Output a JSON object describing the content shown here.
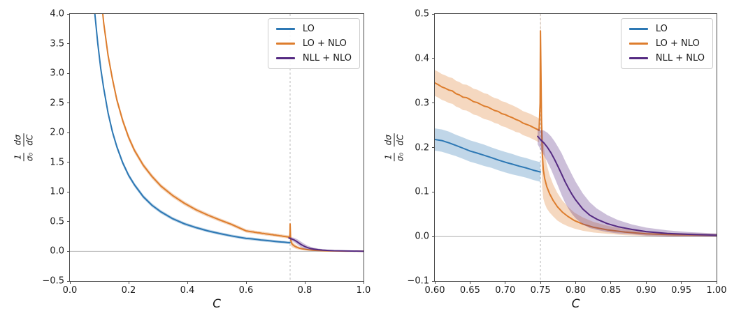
{
  "figure": {
    "background": "#ffffff"
  },
  "ylabel_parts": {
    "num1": "1",
    "den1": "σ₀",
    "num2": "dσ",
    "den2": "dC"
  },
  "legend": {
    "entries": [
      {
        "label": "LO",
        "color": "#2d78b4",
        "slug": "lo"
      },
      {
        "label": "LO + NLO",
        "color": "#dd7d2d",
        "slug": "lo-nlo"
      },
      {
        "label": "NLL + NLO",
        "color": "#552a82",
        "slug": "nll-nlo"
      }
    ]
  },
  "chart_data": {
    "type": "line",
    "title": "",
    "ylabel_text": "1/σ₀ dσ/dC",
    "grid": false,
    "legend_position": "upper right",
    "style": {
      "zero_line_color": "#b3b3b3",
      "vline_color": "#c4c4c4",
      "band_opacity": 0.3,
      "line_width": 2,
      "spine_color": "#4a4a4a"
    },
    "panels": [
      {
        "name": "left",
        "xlabel": "C",
        "xlim": [
          0.0,
          1.0
        ],
        "ylim": [
          -0.5,
          4.0
        ],
        "xtick_vals": [
          0.0,
          0.2,
          0.4,
          0.6,
          0.8,
          1.0
        ],
        "xtick_labels": [
          "0.0",
          "0.2",
          "0.4",
          "0.6",
          "0.8",
          "1.0"
        ],
        "ytick_vals": [
          4.0,
          3.5,
          3.0,
          2.5,
          2.0,
          1.5,
          1.0,
          0.5,
          0.0,
          -0.5
        ],
        "ytick_labels": [
          "4.0",
          "3.5",
          "3.0",
          "2.5",
          "2.0",
          "1.5",
          "1.0",
          "0.5",
          "0.0",
          "−0.5"
        ],
        "zero_line_y": 0.0,
        "dashed_vline_x": 0.75
      },
      {
        "name": "right",
        "xlabel": "C",
        "xlim": [
          0.6,
          1.0
        ],
        "ylim": [
          -0.1,
          0.5
        ],
        "xtick_vals": [
          0.6,
          0.65,
          0.7,
          0.75,
          0.8,
          0.85,
          0.9,
          0.95,
          1.0
        ],
        "xtick_labels": [
          "0.60",
          "0.65",
          "0.70",
          "0.75",
          "0.80",
          "0.85",
          "0.90",
          "0.95",
          "1.00"
        ],
        "ytick_vals": [
          0.5,
          0.4,
          0.3,
          0.2,
          0.1,
          0.0,
          -0.1
        ],
        "ytick_labels": [
          "0.5",
          "0.4",
          "0.3",
          "0.2",
          "0.1",
          "0.0",
          "−0.1"
        ],
        "zero_line_y": 0.0,
        "dashed_vline_x": 0.75
      }
    ],
    "series": [
      {
        "name": "LO",
        "slug": "lo",
        "color": "#2d78b4",
        "x": [
          0.075,
          0.085,
          0.095,
          0.105,
          0.115,
          0.13,
          0.145,
          0.16,
          0.18,
          0.2,
          0.22,
          0.25,
          0.28,
          0.31,
          0.35,
          0.39,
          0.43,
          0.47,
          0.51,
          0.55,
          0.6,
          0.61,
          0.62,
          0.63,
          0.64,
          0.65,
          0.66,
          0.67,
          0.68,
          0.69,
          0.7,
          0.71,
          0.72,
          0.73,
          0.74,
          0.75
        ],
        "y": [
          4.6,
          4.0,
          3.5,
          3.08,
          2.75,
          2.33,
          2.01,
          1.76,
          1.49,
          1.28,
          1.12,
          0.92,
          0.775,
          0.665,
          0.55,
          0.465,
          0.4,
          0.345,
          0.3,
          0.26,
          0.218,
          0.2155,
          0.2105,
          0.2045,
          0.1985,
          0.192,
          0.1875,
          0.1825,
          0.1775,
          0.172,
          0.167,
          0.1625,
          0.158,
          0.154,
          0.149,
          0.145
        ],
        "h": [
          0.085,
          0.075,
          0.068,
          0.062,
          0.058,
          0.052,
          0.048,
          0.044,
          0.04,
          0.038,
          0.036,
          0.033,
          0.031,
          0.03,
          0.028,
          0.027,
          0.026,
          0.026,
          0.025,
          0.025,
          0.025,
          0.025,
          0.025,
          0.024,
          0.024,
          0.024,
          0.024,
          0.024,
          0.023,
          0.023,
          0.023,
          0.023,
          0.022,
          0.022,
          0.022,
          0.022
        ]
      },
      {
        "name": "LO + NLO",
        "slug": "lo-nlo",
        "color": "#dd7d2d",
        "x": [
          0.098,
          0.105,
          0.115,
          0.13,
          0.145,
          0.16,
          0.18,
          0.2,
          0.22,
          0.25,
          0.28,
          0.31,
          0.35,
          0.39,
          0.43,
          0.47,
          0.51,
          0.55,
          0.575,
          0.6,
          0.605,
          0.61,
          0.615,
          0.62,
          0.625,
          0.63,
          0.635,
          0.64,
          0.645,
          0.65,
          0.655,
          0.66,
          0.665,
          0.67,
          0.675,
          0.68,
          0.685,
          0.69,
          0.695,
          0.7,
          0.705,
          0.71,
          0.715,
          0.72,
          0.725,
          0.73,
          0.735,
          0.74,
          0.745,
          0.748,
          0.7495,
          0.75,
          0.7508,
          0.7515,
          0.7525,
          0.754,
          0.756,
          0.759,
          0.763,
          0.768,
          0.774,
          0.781,
          0.789,
          0.798,
          0.81,
          0.825,
          0.845,
          0.87,
          0.9,
          0.94,
          1.0
        ],
        "y": [
          4.6,
          4.35,
          3.85,
          3.3,
          2.9,
          2.55,
          2.2,
          1.92,
          1.7,
          1.45,
          1.26,
          1.1,
          0.94,
          0.81,
          0.7,
          0.61,
          0.53,
          0.455,
          0.4,
          0.345,
          0.341,
          0.336,
          0.333,
          0.329,
          0.327,
          0.321,
          0.318,
          0.313,
          0.312,
          0.308,
          0.303,
          0.301,
          0.297,
          0.293,
          0.291,
          0.287,
          0.283,
          0.281,
          0.276,
          0.274,
          0.27,
          0.267,
          0.263,
          0.26,
          0.255,
          0.252,
          0.249,
          0.245,
          0.241,
          0.238,
          0.3,
          0.462,
          0.36,
          0.26,
          0.19,
          0.15,
          0.13,
          0.112,
          0.096,
          0.081,
          0.067,
          0.055,
          0.045,
          0.036,
          0.028,
          0.021,
          0.015,
          0.01,
          0.006,
          0.004,
          0.003
        ],
        "h": [
          0.08,
          0.077,
          0.071,
          0.065,
          0.06,
          0.056,
          0.051,
          0.048,
          0.045,
          0.042,
          0.04,
          0.038,
          0.036,
          0.035,
          0.033,
          0.032,
          0.031,
          0.03,
          0.03,
          0.029,
          0.029,
          0.029,
          0.029,
          0.029,
          0.029,
          0.029,
          0.029,
          0.029,
          0.029,
          0.029,
          0.029,
          0.029,
          0.029,
          0.029,
          0.029,
          0.028,
          0.028,
          0.028,
          0.028,
          0.028,
          0.028,
          0.028,
          0.028,
          0.027,
          0.027,
          0.027,
          0.027,
          0.027,
          0.027,
          0.027,
          0.05,
          0.06,
          0.07,
          0.08,
          0.08,
          0.065,
          0.056,
          0.049,
          0.042,
          0.036,
          0.031,
          0.026,
          0.022,
          0.018,
          0.015,
          0.012,
          0.009,
          0.007,
          0.005,
          0.004,
          0.003
        ]
      },
      {
        "name": "NLL + NLO",
        "slug": "nll-nlo",
        "color": "#552a82",
        "x": [
          0.746,
          0.75,
          0.7525,
          0.755,
          0.76,
          0.765,
          0.77,
          0.775,
          0.78,
          0.785,
          0.79,
          0.795,
          0.8,
          0.81,
          0.82,
          0.83,
          0.845,
          0.86,
          0.88,
          0.9,
          0.93,
          0.96,
          1.0
        ],
        "y": [
          0.225,
          0.218,
          0.214,
          0.21,
          0.2,
          0.188,
          0.173,
          0.157,
          0.14,
          0.123,
          0.108,
          0.094,
          0.082,
          0.062,
          0.048,
          0.039,
          0.029,
          0.022,
          0.016,
          0.011,
          0.007,
          0.005,
          0.003
        ],
        "h": [
          0.018,
          0.022,
          0.025,
          0.028,
          0.033,
          0.037,
          0.041,
          0.044,
          0.047,
          0.047,
          0.046,
          0.044,
          0.041,
          0.035,
          0.029,
          0.024,
          0.019,
          0.015,
          0.011,
          0.009,
          0.007,
          0.005,
          0.004
        ]
      }
    ]
  }
}
